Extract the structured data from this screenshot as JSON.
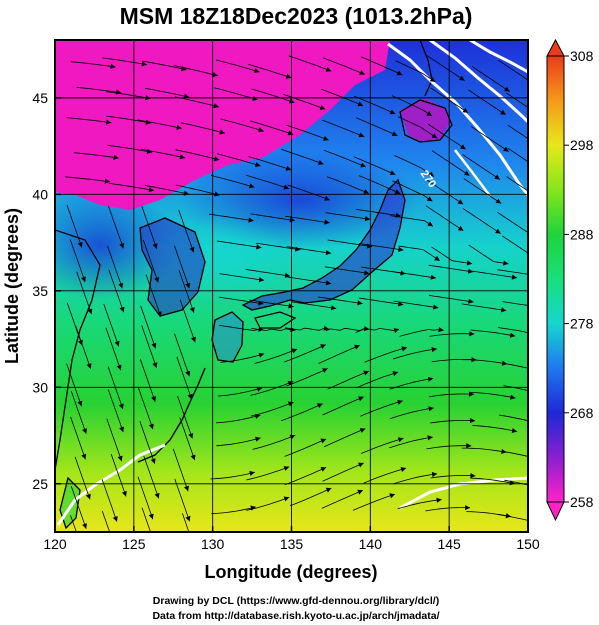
{
  "chart_data": {
    "type": "heatmap",
    "title": "MSM 18Z18Dec2023 (1013.2hPa)",
    "xlabel": "Longitude (degrees)",
    "ylabel": "Latitude  (degrees)",
    "xlim": [
      120,
      150
    ],
    "ylim": [
      22.5,
      48
    ],
    "x_ticks": [
      120,
      125,
      130,
      135,
      140,
      145,
      150
    ],
    "y_ticks": [
      25,
      30,
      35,
      40,
      45
    ],
    "grid": true,
    "colorbar": {
      "min": 258,
      "max": 308,
      "ticks": [
        258,
        268,
        278,
        288,
        298,
        308
      ],
      "stops": [
        {
          "v": 258,
          "color": "#ff22c8"
        },
        {
          "v": 263,
          "color": "#8a1fd0"
        },
        {
          "v": 268,
          "color": "#1e28d6"
        },
        {
          "v": 273,
          "color": "#1f78ee"
        },
        {
          "v": 278,
          "color": "#16d6d0"
        },
        {
          "v": 283,
          "color": "#18e07a"
        },
        {
          "v": 288,
          "color": "#1ed43c"
        },
        {
          "v": 293,
          "color": "#86e61a"
        },
        {
          "v": 298,
          "color": "#e6e81a"
        },
        {
          "v": 303,
          "color": "#f59a18"
        },
        {
          "v": 308,
          "color": "#ea3b1c"
        }
      ]
    },
    "contour_labels": [
      {
        "text": "270",
        "lon": 143.5,
        "lat": 40.7,
        "angle": 55
      }
    ]
  },
  "footer": {
    "line1": "Drawing by DCL (https://www.gfd-dennou.org/library/dcl/)",
    "line2": "Data from http://database.rish.kyoto-u.ac.jp/arch/jmadata/"
  }
}
